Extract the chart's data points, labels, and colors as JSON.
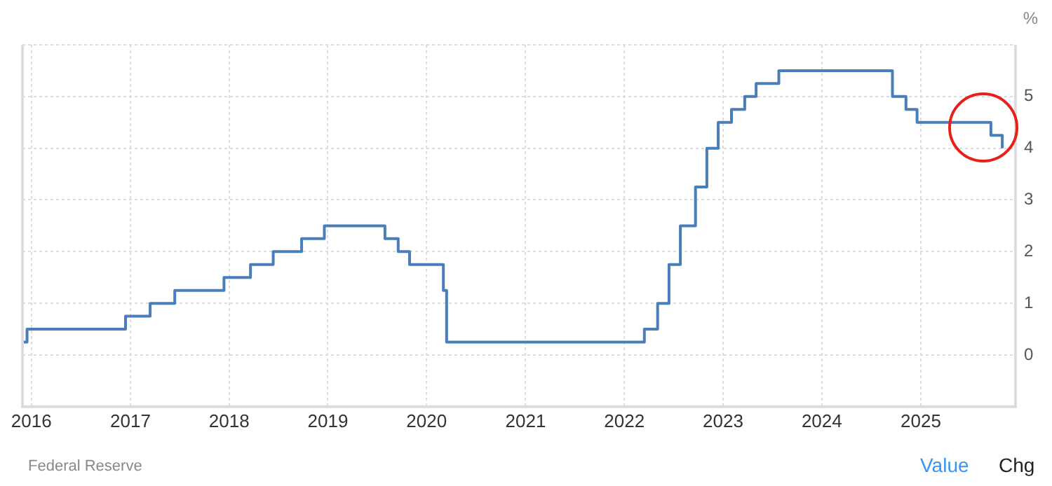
{
  "chart_data": {
    "type": "step",
    "ylabel": "%",
    "x": [
      "2015-12-01",
      "2015-12-16",
      "2016-12-14",
      "2017-03-15",
      "2017-06-14",
      "2017-12-13",
      "2018-03-21",
      "2018-06-13",
      "2018-09-26",
      "2018-12-19",
      "2019-07-31",
      "2019-09-18",
      "2019-10-30",
      "2020-03-03",
      "2020-03-15",
      "2022-03-16",
      "2022-05-04",
      "2022-06-15",
      "2022-07-27",
      "2022-09-21",
      "2022-11-02",
      "2022-12-14",
      "2023-02-01",
      "2023-03-22",
      "2023-05-03",
      "2023-07-26",
      "2024-09-18",
      "2024-11-07",
      "2024-12-18",
      "2025-09-17",
      "2025-10-29"
    ],
    "series": [
      {
        "color": "#4a7ebb",
        "values": [
          0.25,
          0.5,
          0.75,
          1,
          1.25,
          1.5,
          1.75,
          2,
          2.25,
          2.5,
          2.25,
          2,
          1.75,
          1.25,
          0.25,
          0.5,
          1,
          1.75,
          2.5,
          3.25,
          4,
          4.5,
          4.75,
          5,
          5.25,
          5.5,
          5,
          4.75,
          4.5,
          4.25,
          4
        ]
      }
    ],
    "xlim": [
      "2015-11-29",
      "2025-12-17"
    ],
    "xticks": [
      {
        "value": "2016",
        "label": "2016"
      },
      {
        "value": "2017",
        "label": "2017"
      },
      {
        "value": "2018",
        "label": "2018"
      },
      {
        "value": "2019",
        "label": "2019"
      },
      {
        "value": "2020",
        "label": "2020"
      },
      {
        "value": "2021",
        "label": "2021"
      },
      {
        "value": "2022",
        "label": "2022"
      },
      {
        "value": "2023",
        "label": "2023"
      },
      {
        "value": "2024",
        "label": "2024"
      },
      {
        "value": "2025",
        "label": "2025"
      }
    ],
    "ylim": [
      -1,
      6
    ],
    "yticks": [
      {
        "value": -1,
        "label": null
      },
      0,
      1,
      2,
      3,
      4,
      5,
      {
        "value": 6,
        "label": null
      }
    ],
    "grid": true,
    "legend": false,
    "marker": "none",
    "line_style": "solid",
    "annotations": [
      "Federal Reserve",
      "Value",
      "Chg"
    ]
  }
}
